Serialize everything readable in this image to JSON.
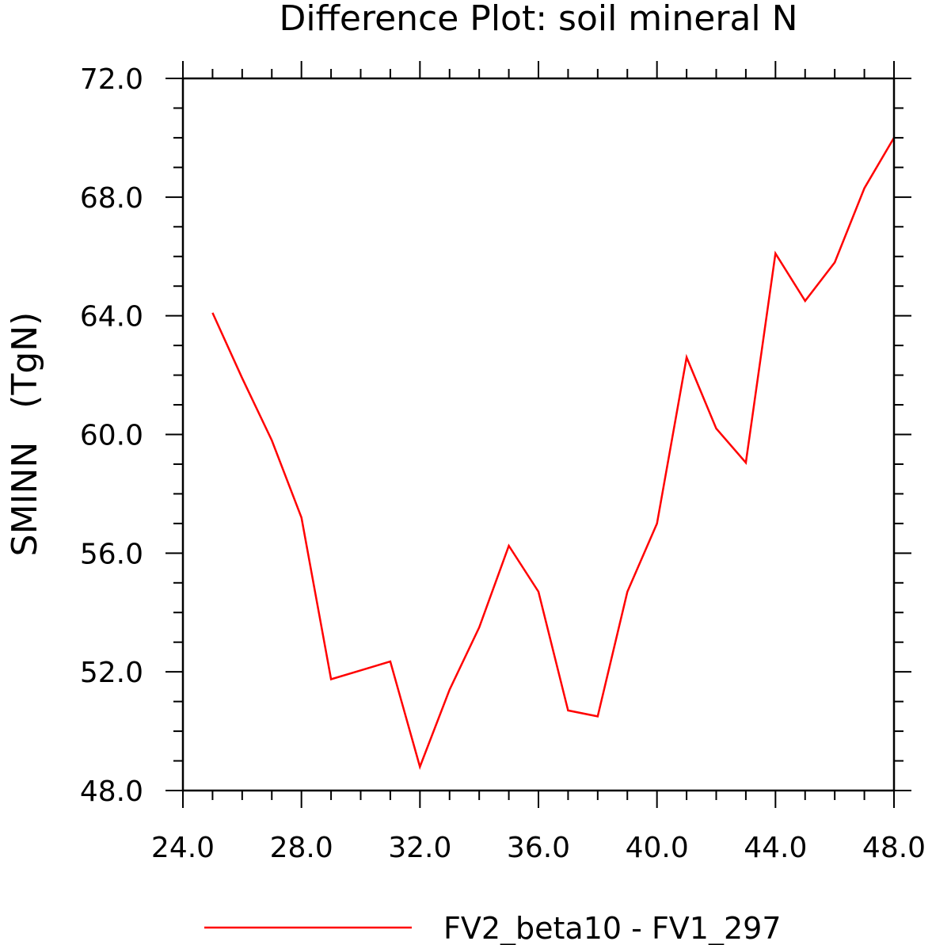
{
  "chart_data": {
    "type": "line",
    "title": "Difference Plot: soil mineral N",
    "xlabel": "",
    "ylabel": "SMINN   (TgN)",
    "xlim": [
      24.0,
      48.0
    ],
    "ylim": [
      48.0,
      72.0
    ],
    "x_ticks": [
      "24.0",
      "28.0",
      "32.0",
      "36.0",
      "40.0",
      "44.0",
      "48.0"
    ],
    "y_ticks": [
      "48.0",
      "52.0",
      "56.0",
      "60.0",
      "64.0",
      "68.0",
      "72.0"
    ],
    "x_tick_values": [
      24,
      28,
      32,
      36,
      40,
      44,
      48
    ],
    "y_tick_values": [
      48,
      52,
      56,
      60,
      64,
      68,
      72
    ],
    "grid": false,
    "legend_position": "bottom",
    "series": [
      {
        "name": "FV2_beta10 - FV1_297",
        "color": "#ff0000",
        "x": [
          25,
          26,
          27,
          28,
          29,
          30,
          31,
          32,
          33,
          34,
          35,
          36,
          37,
          38,
          39,
          40,
          41,
          42,
          43,
          44,
          45,
          46,
          47,
          48
        ],
        "y": [
          64.1,
          61.9,
          59.8,
          57.2,
          51.75,
          52.05,
          52.35,
          48.8,
          51.4,
          53.5,
          56.25,
          54.7,
          50.7,
          50.5,
          54.7,
          57.0,
          62.6,
          60.2,
          59.05,
          66.1,
          64.5,
          65.8,
          68.3,
          70.0
        ]
      }
    ]
  }
}
